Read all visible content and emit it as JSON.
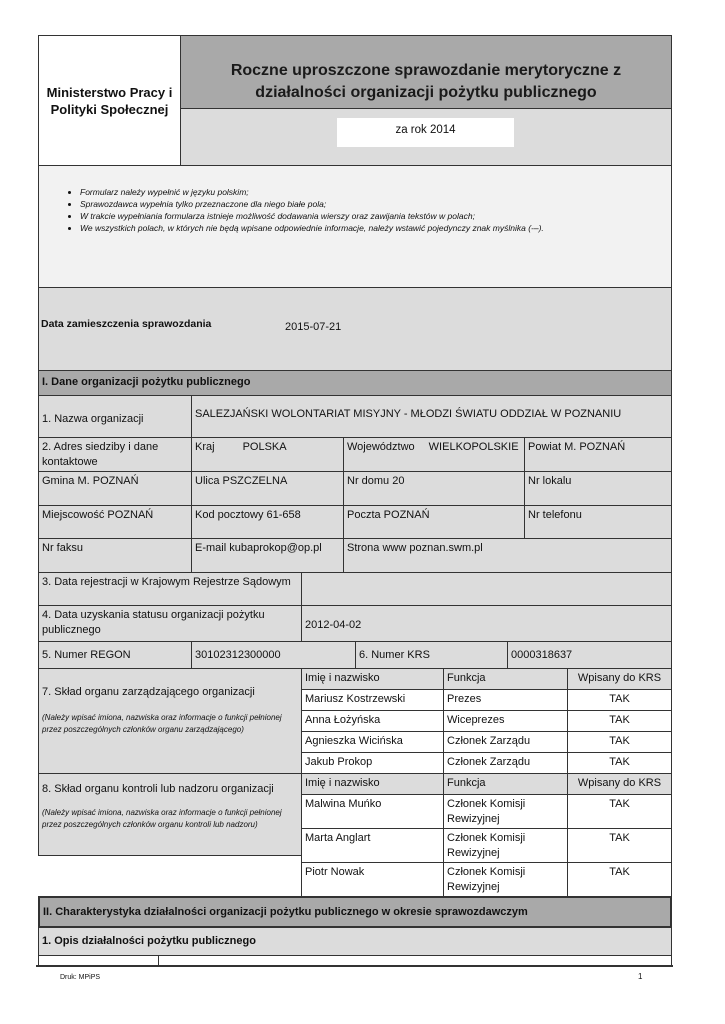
{
  "header": {
    "ministry": "Ministerstwo Pracy i Polityki Społecznej",
    "title": "Roczne uproszczone sprawozdanie merytoryczne z działalności organizacji pożytku publicznego",
    "year": "za rok 2014"
  },
  "instructions": [
    "Formularz należy wypełnić w języku polskim;",
    "Sprawozdawca wypełnia tylko przeznaczone dla niego białe pola;",
    "W trakcie wypełniania formularza istnieje możliwość dodawania wierszy oraz zawijania tekstów w polach;",
    "We wszystkich polach, w których nie będą wpisane odpowiednie informacje, należy wstawić pojedynczy znak myślnika (-–)."
  ],
  "date": {
    "label": "Data zamieszczenia sprawozdania",
    "value": "2015-07-21"
  },
  "section1": {
    "title": "I. Dane organizacji pożytku publicznego",
    "name_label": "1. Nazwa organizacji",
    "name_value": "SALEZJAŃSKI WOLONTARIAT MISYJNY - MŁODZI ŚWIATU ODDZIAŁ W POZNANIU",
    "address_label": "2. Adres siedziby i dane kontaktowe",
    "kraj_label": "Kraj",
    "kraj": "POLSKA",
    "woj_label": "Województwo",
    "woj": "WIELKOPOLSKIE",
    "powiat": "Powiat M. POZNAŃ",
    "gmina": "Gmina M. POZNAŃ",
    "ulica": "Ulica PSZCZELNA",
    "nr_domu": "Nr domu 20",
    "nr_lokalu": "Nr lokalu",
    "miejscowosc": "Miejscowość POZNAŃ",
    "kod": "Kod pocztowy 61-658",
    "poczta": "Poczta POZNAŃ",
    "telefon": "Nr telefonu",
    "faks": "Nr faksu",
    "email": "E-mail kubaprokop@op.pl",
    "www": "Strona www poznan.swm.pl",
    "krs_date_label": "3. Data rejestracji w Krajowym Rejestrze Sądowym",
    "opp_date_label": "4. Data uzyskania statusu organizacji pożytku publicznego",
    "opp_date": "2012-04-02",
    "regon_label": "5. Numer REGON",
    "regon": "30102312300000",
    "krs_label": "6. Numer KRS",
    "krs": "0000318637",
    "board_label": "7. Skład organu zarządzającego organizacji",
    "board_note": "(Należy wpisać imiona, nazwiska oraz informacje o funkcji pełnionej przez poszczególnych członków organu zarządzającego)",
    "control_label": "8. Skład organu kontroli lub nadzoru organizacji",
    "control_note": "(Należy wpisać imiona, nazwiska oraz informacje o funkcji pełnionej przez poszczególnych członków organu kontroli lub nadzoru)",
    "columns": [
      "Imię i nazwisko",
      "Funkcja",
      "Wpisany do KRS"
    ],
    "board": [
      [
        "Mariusz Kostrzewski",
        "Prezes",
        "TAK"
      ],
      [
        "Anna Łożyńska",
        "Wiceprezes",
        "TAK"
      ],
      [
        "Agnieszka Wicińska",
        "Członek Zarządu",
        "TAK"
      ],
      [
        "Jakub Prokop",
        "Członek Zarządu",
        "TAK"
      ]
    ],
    "control": [
      [
        "Malwina Muńko",
        "Członek Komisji Rewizyjnej",
        "TAK"
      ],
      [
        "Marta Anglart",
        "Członek Komisji Rewizyjnej",
        "TAK"
      ],
      [
        "Piotr Nowak",
        "Członek Komisji Rewizyjnej",
        "TAK"
      ]
    ]
  },
  "section2": {
    "title": "II. Charakterystyka działalności organizacji pożytku publicznego  w okresie sprawozdawczym",
    "sub": "1. Opis działalności pożytku publicznego"
  },
  "footer": {
    "print": "Druk: MPiPS",
    "page": "1"
  }
}
